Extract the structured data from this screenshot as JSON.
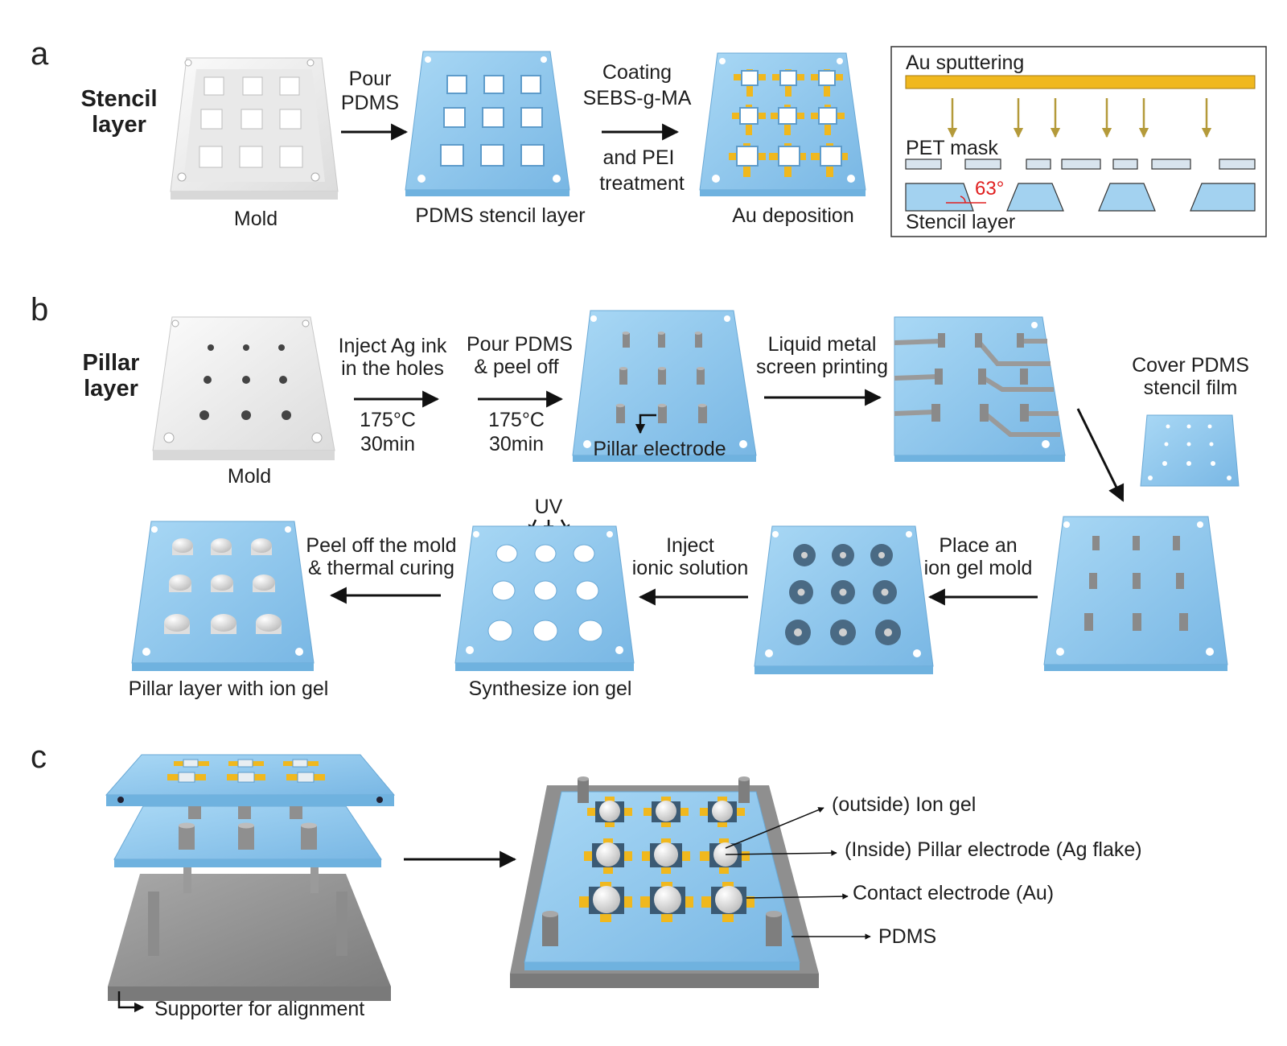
{
  "colors": {
    "pdms_top": "#9fd1f1",
    "pdms_side": "#6fb2df",
    "gold": "#f0b81e",
    "mold": "#f2f2f2",
    "gray_support": "#8f8f8f",
    "arrow": "#111111",
    "sputter_arrow": "#b49a3a",
    "angle_red": "#e02020"
  },
  "panel_a": {
    "letter": "a",
    "row_title_1": "Stencil",
    "row_title_2": "layer",
    "mold_caption": "Mold",
    "step1_line1": "Pour",
    "step1_line2": "PDMS",
    "stencil_caption": "PDMS stencil layer",
    "step2_line1": "Coating",
    "step2_line2": "SEBS-g-MA",
    "step2_line3": "and PEI",
    "step2_line4": "treatment",
    "au_caption": "Au deposition",
    "inset": {
      "sputter_label": "Au sputtering",
      "mask_label": "PET mask",
      "angle_label": "63°",
      "stencil_label": "Stencil layer"
    }
  },
  "panel_b": {
    "letter": "b",
    "row_title_1": "Pillar",
    "row_title_2": "layer",
    "mold_caption": "Mold",
    "step1_line1": "Inject Ag ink",
    "step1_line2": "in the holes",
    "step1_temp": "175°C",
    "step1_time": "30min",
    "step2_line1": "Pour PDMS",
    "step2_line2": "& peel off",
    "step2_temp": "175°C",
    "step2_time": "30min",
    "pillar_label": "Pillar electrode",
    "step3_line1": "Liquid metal",
    "step3_line2": "screen printing",
    "cover_line1": "Cover PDMS",
    "cover_line2": "stencil film",
    "step4_line1": "Place an",
    "step4_line2": "ion gel mold",
    "step5_line1": "Inject",
    "step5_line2": "ionic solution",
    "uv_label": "UV",
    "synth_caption": "Synthesize ion gel",
    "step6_line1": "Peel off the mold",
    "step6_line2": "& thermal curing",
    "final_caption": "Pillar layer with ion gel"
  },
  "panel_c": {
    "letter": "c",
    "support_caption": "Supporter for alignment",
    "callout_1": "(outside) Ion gel",
    "callout_2": "(Inside) Pillar electrode (Ag flake)",
    "callout_3": "Contact electrode (Au)",
    "callout_4": "PDMS"
  }
}
